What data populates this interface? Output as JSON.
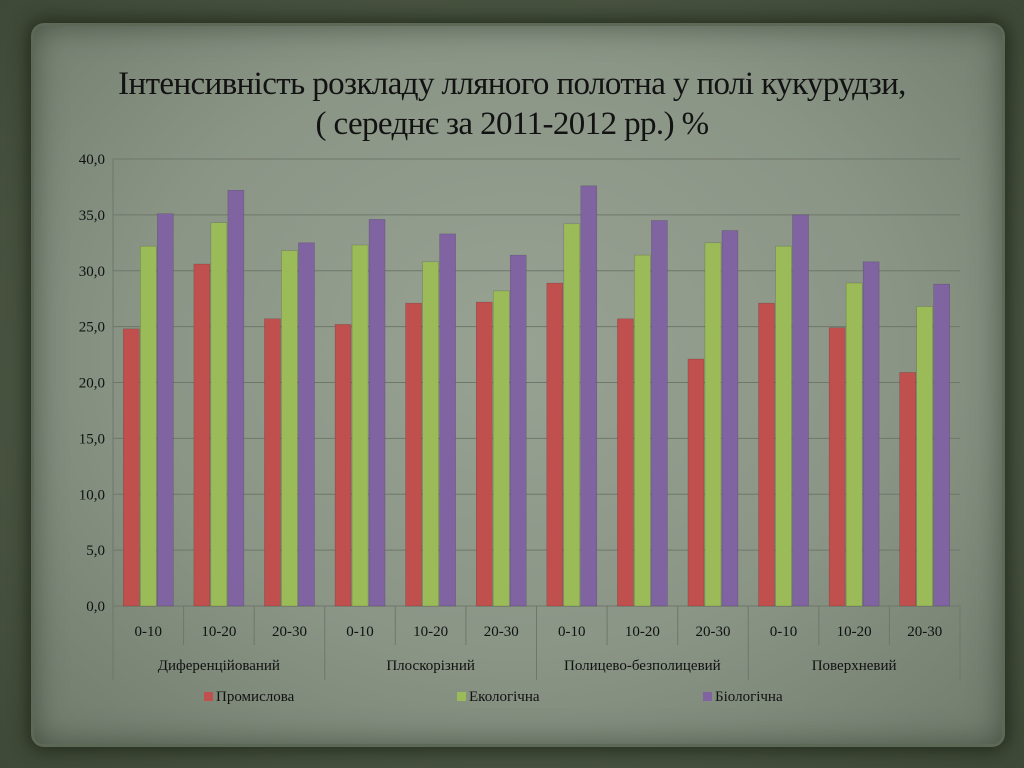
{
  "slide": {
    "title_line1": "Інтенсивність розкладу лляного полотна у полі кукурудзи,",
    "title_line2": "( середнє за 2011-2012 рр.)  %"
  },
  "chart_data": {
    "type": "bar",
    "ylim": [
      0,
      40
    ],
    "yticks": [
      "0,0",
      "5,0",
      "10,0",
      "15,0",
      "20,0",
      "25,0",
      "30,0",
      "35,0",
      "40,0"
    ],
    "grid": true,
    "legend_position": "bottom",
    "groups": [
      "Диференційований",
      "Плоскорізний",
      "Полицево-безполицевий",
      "Поверхневий"
    ],
    "categories": [
      "0-10",
      "10-20",
      "20-30",
      "0-10",
      "10-20",
      "20-30",
      "0-10",
      "10-20",
      "20-30",
      "0-10",
      "10-20",
      "20-30"
    ],
    "series": [
      {
        "name": "Промислова",
        "color": "#c0504d",
        "values": [
          24.8,
          30.6,
          25.7,
          25.2,
          27.1,
          27.2,
          28.9,
          25.7,
          22.1,
          27.1,
          24.9,
          20.9
        ]
      },
      {
        "name": "Екологічна",
        "color": "#9bbb59",
        "values": [
          32.2,
          34.3,
          31.8,
          32.3,
          30.8,
          28.2,
          34.2,
          31.4,
          32.5,
          32.2,
          28.9,
          26.8
        ]
      },
      {
        "name": "Біологічна",
        "color": "#8064a2",
        "values": [
          35.1,
          37.2,
          32.5,
          34.6,
          33.3,
          31.4,
          37.6,
          34.5,
          33.6,
          35.0,
          30.8,
          28.8
        ]
      }
    ]
  }
}
